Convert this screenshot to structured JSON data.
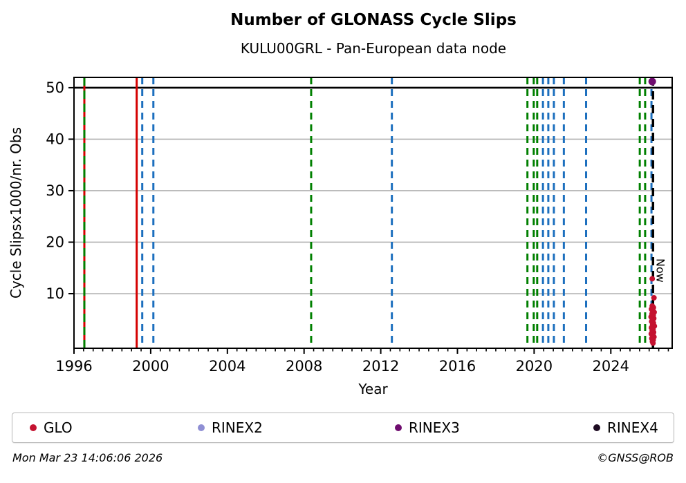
{
  "header": {
    "title": "Number of GLONASS Cycle Slips",
    "subtitle": "KULU00GRL - Pan-European data node"
  },
  "footer": {
    "timestamp": "Mon Mar 23 14:06:06 2026",
    "credit": "©GNSS@ROB"
  },
  "legend": {
    "items": [
      {
        "label": "GLO",
        "color": "#c41230"
      },
      {
        "label": "RINEX2",
        "color": "#8f8fd4"
      },
      {
        "label": "RINEX3",
        "color": "#6f0c6f"
      },
      {
        "label": "RINEX4",
        "color": "#1e0b22"
      }
    ]
  },
  "chart_data": {
    "type": "scatter",
    "title": "Number of GLONASS Cycle Slips",
    "subtitle": "KULU00GRL - Pan-European data node",
    "xlabel": "Year",
    "ylabel": "Cycle Slipsx1000/nr. Obs",
    "xlim": [
      1996,
      2027.2
    ],
    "ylim": [
      -0.6,
      52.0
    ],
    "x_major_ticks": [
      1996,
      2000,
      2004,
      2008,
      2012,
      2016,
      2020,
      2024
    ],
    "x_minor_step": 0.5,
    "y_major_ticks": [
      10,
      20,
      30,
      40,
      50
    ],
    "grid": "horizontal",
    "grid_color": "#b0b0b0",
    "cap_line_y": 50,
    "now_line": {
      "x": 2026.2,
      "label": "Now",
      "color": "#000000",
      "style": "dashed"
    },
    "event_lines": [
      {
        "x": 1996.54,
        "type": "mixed-red-green",
        "color_a": "#d40000",
        "color_b": "#008000"
      },
      {
        "x": 1999.27,
        "color": "#d40000",
        "style": "solid"
      },
      {
        "x": 1999.56,
        "color": "#1c6fbe",
        "style": "dashed"
      },
      {
        "x": 2000.14,
        "color": "#1c6fbe",
        "style": "dashed"
      },
      {
        "x": 2008.37,
        "color": "#008000",
        "style": "dashed"
      },
      {
        "x": 2012.58,
        "color": "#1c6fbe",
        "style": "dashed"
      },
      {
        "x": 2019.65,
        "color": "#008000",
        "style": "dashed"
      },
      {
        "x": 2019.98,
        "color": "#008000",
        "style": "dashed"
      },
      {
        "x": 2020.16,
        "color": "#008000",
        "style": "dashed"
      },
      {
        "x": 2020.46,
        "color": "#1c6fbe",
        "style": "dashed"
      },
      {
        "x": 2020.74,
        "color": "#1c6fbe",
        "style": "dashed"
      },
      {
        "x": 2021.03,
        "color": "#1c6fbe",
        "style": "dashed"
      },
      {
        "x": 2021.55,
        "color": "#1c6fbe",
        "style": "dashed"
      },
      {
        "x": 2022.71,
        "color": "#1c6fbe",
        "style": "dashed"
      },
      {
        "x": 2025.51,
        "color": "#008000",
        "style": "dashed"
      },
      {
        "x": 2025.79,
        "color": "#008000",
        "style": "dashed"
      },
      {
        "x": 2026.12,
        "color": "#1c6fbe",
        "style": "dashed"
      }
    ],
    "series": [
      {
        "name": "GLO",
        "color": "#c41230",
        "marker_radius": 4,
        "points": [
          [
            2026.16,
            12.9
          ],
          [
            2026.25,
            9.2
          ],
          [
            2026.16,
            7.6
          ],
          [
            2026.22,
            7.3
          ],
          [
            2026.12,
            7.0
          ],
          [
            2026.19,
            6.7
          ],
          [
            2026.26,
            6.4
          ],
          [
            2026.15,
            6.1
          ],
          [
            2026.21,
            5.8
          ],
          [
            2026.1,
            5.5
          ],
          [
            2026.24,
            5.2
          ],
          [
            2026.17,
            4.9
          ],
          [
            2026.13,
            4.6
          ],
          [
            2026.22,
            4.3
          ],
          [
            2026.18,
            4.0
          ],
          [
            2026.27,
            3.7
          ],
          [
            2026.12,
            3.4
          ],
          [
            2026.2,
            3.1
          ],
          [
            2026.16,
            2.8
          ],
          [
            2026.23,
            2.5
          ],
          [
            2026.11,
            2.2
          ],
          [
            2026.19,
            1.9
          ],
          [
            2026.25,
            1.6
          ],
          [
            2026.14,
            1.3
          ],
          [
            2026.21,
            1.0
          ],
          [
            2026.17,
            0.7
          ],
          [
            2026.2,
            0.4
          ]
        ]
      },
      {
        "name": "RINEX2",
        "color": "#8f8fd4",
        "marker_radius": 4,
        "points": []
      },
      {
        "name": "RINEX3",
        "color": "#6f0c6f",
        "marker_radius": 5.5,
        "points": [
          [
            2026.16,
            51.2
          ]
        ]
      },
      {
        "name": "RINEX4",
        "color": "#1e0b22",
        "marker_radius": 4,
        "points": []
      }
    ],
    "legend_position": "bottom",
    "legend_entries": [
      "GLO",
      "RINEX2",
      "RINEX3",
      "RINEX4"
    ]
  }
}
